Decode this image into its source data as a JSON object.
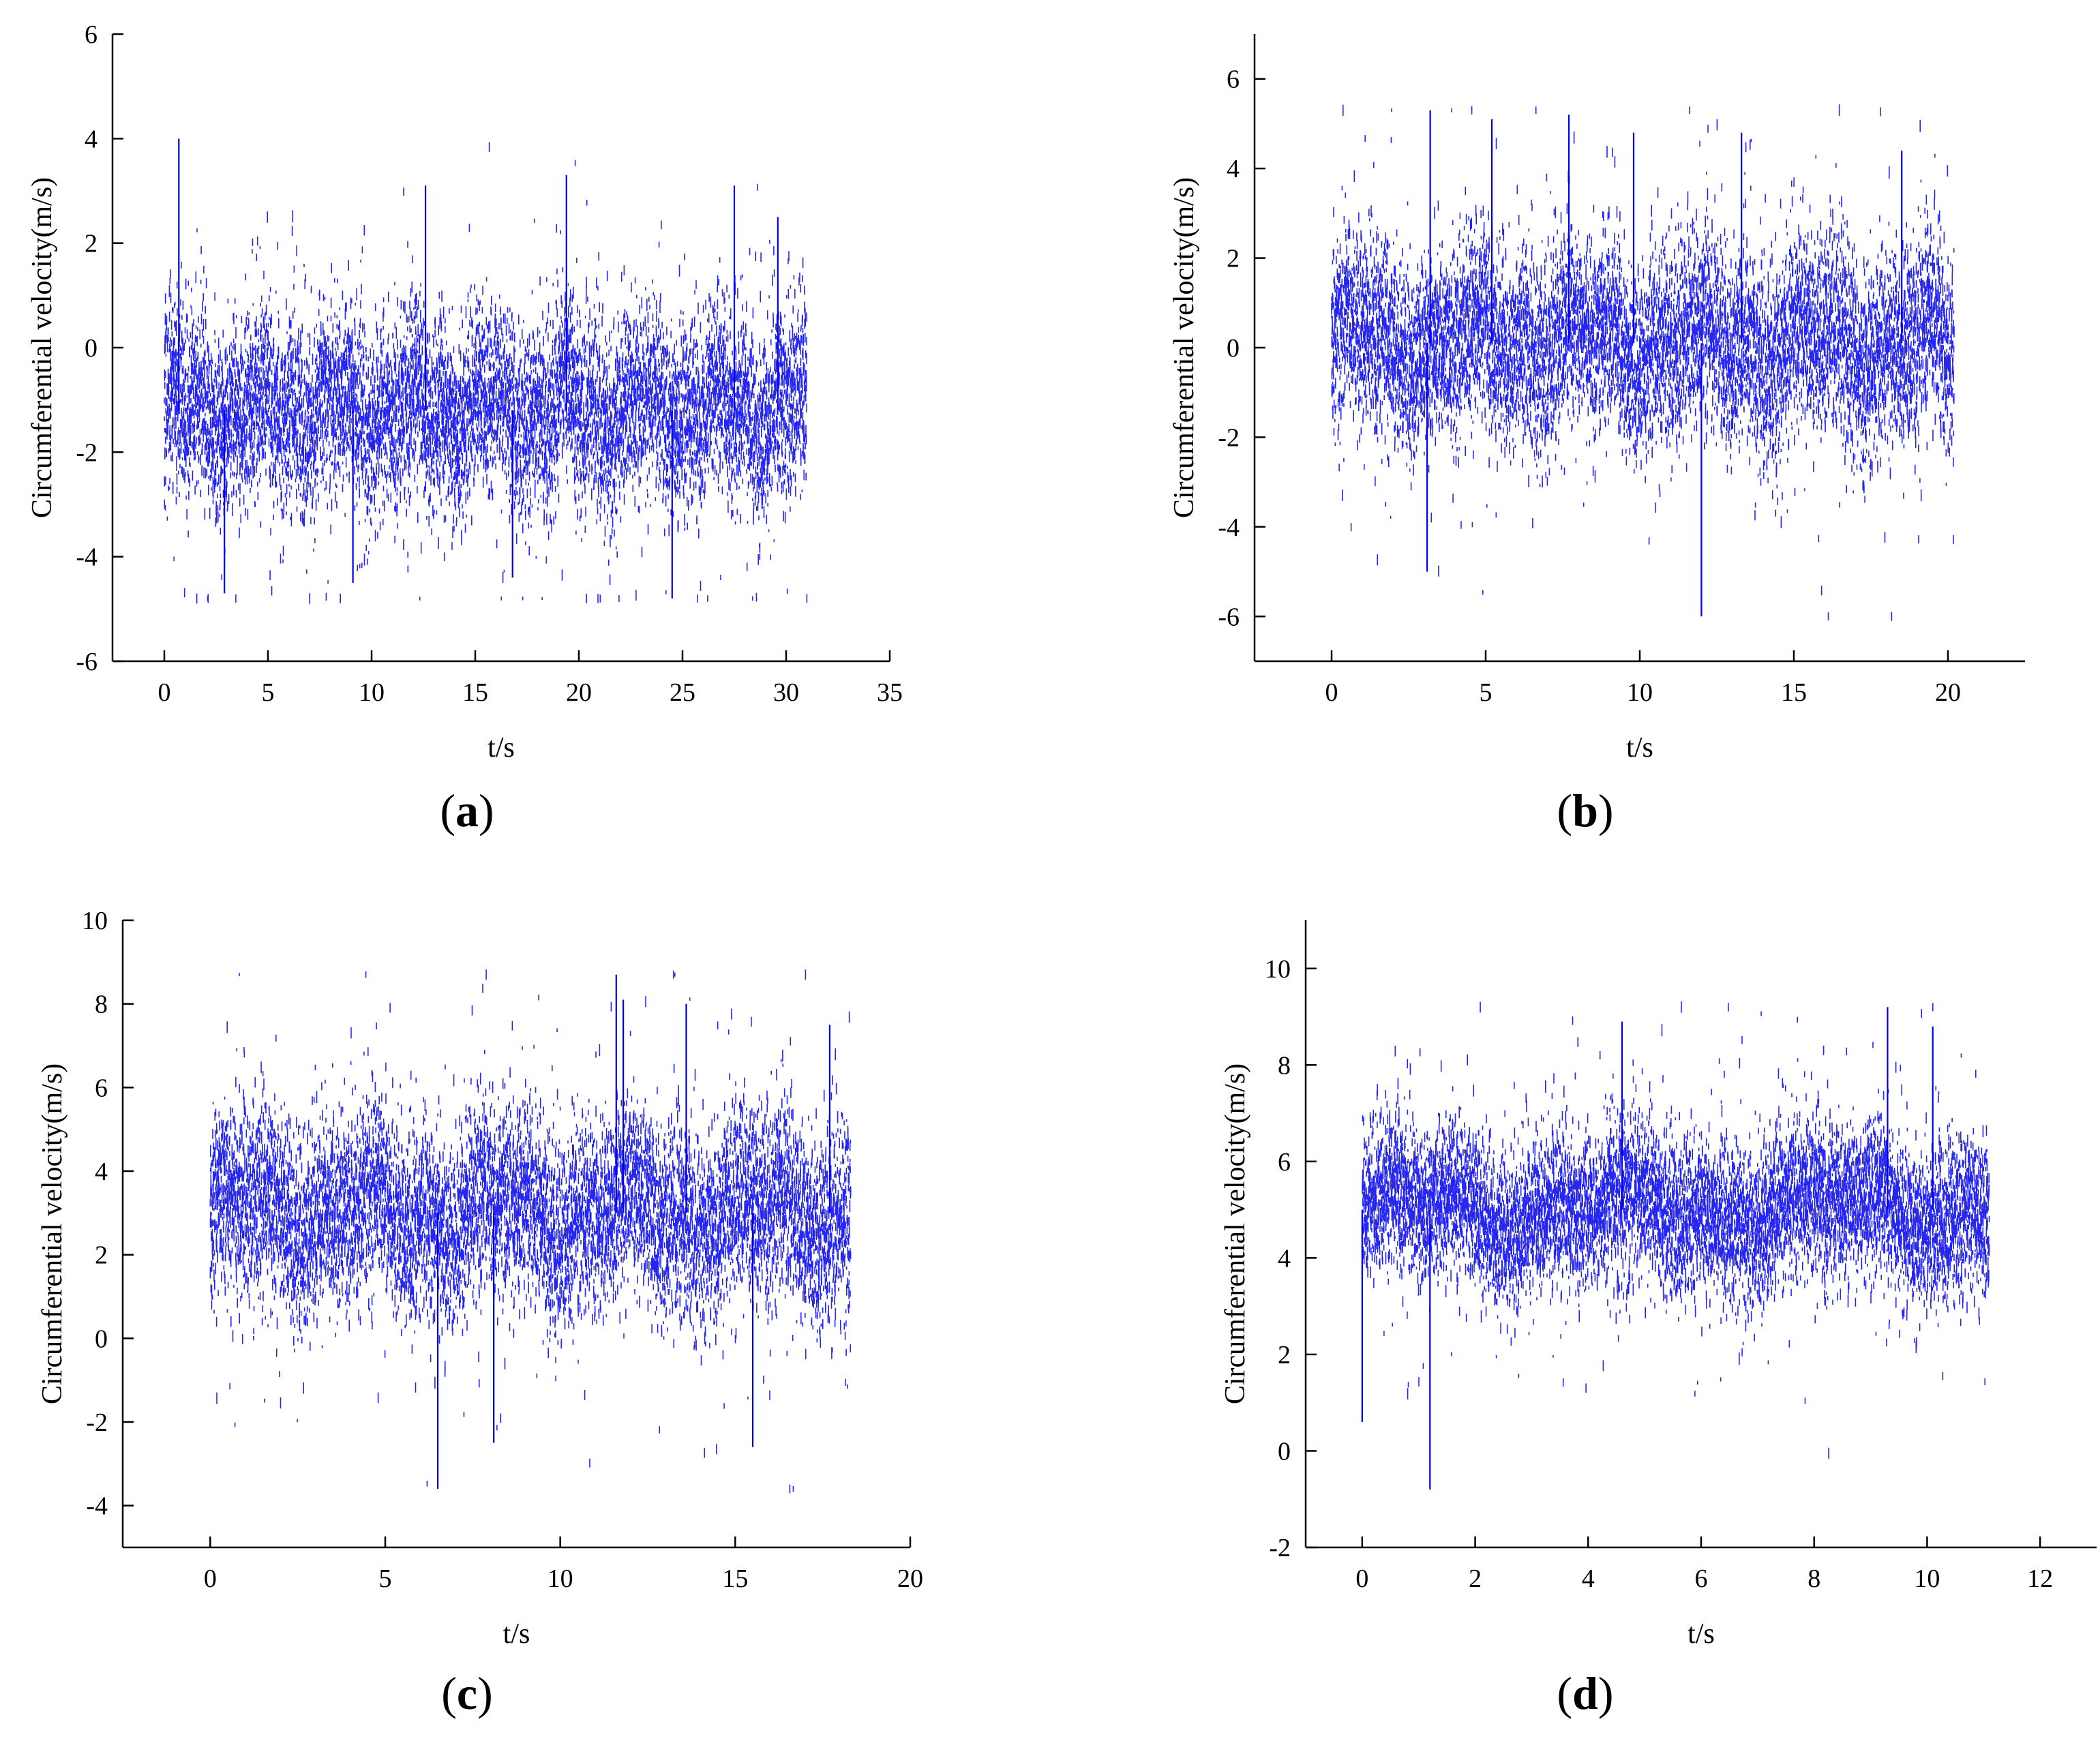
{
  "chart_data": [
    {
      "type": "scatter",
      "panel_label": "a",
      "xlabel": "t/s",
      "ylabel": "Circumferential velocity(m/s)",
      "xlim": [
        -2.5,
        35
      ],
      "ylim": [
        -6,
        6
      ],
      "xticks": [
        0,
        5,
        10,
        15,
        20,
        25,
        30,
        35
      ],
      "yticks": [
        -6,
        -4,
        -2,
        0,
        2,
        4,
        6
      ],
      "grid": false,
      "series": [
        {
          "color": "#0000ee",
          "x_range": [
            0,
            31
          ],
          "mean": -1.2,
          "std": 1.0,
          "min": -4.8,
          "max": 4.0,
          "x": [
            0.7,
            2.9,
            9.1,
            12.6,
            16.8,
            19.4,
            24.5,
            27.5,
            29.6
          ],
          "y": [
            4.0,
            -4.7,
            -4.5,
            3.1,
            -4.4,
            3.3,
            -4.8,
            3.1,
            2.5
          ]
        }
      ]
    },
    {
      "type": "scatter",
      "panel_label": "b",
      "xlabel": "t/s",
      "ylabel": "Circumferential velocity(m/s)",
      "xlim": [
        -2.5,
        22.5
      ],
      "ylim": [
        -7,
        7
      ],
      "xticks": [
        0,
        5,
        10,
        15,
        20
      ],
      "yticks": [
        -6,
        -4,
        -2,
        0,
        2,
        4,
        6
      ],
      "grid": false,
      "series": [
        {
          "color": "#0000ee",
          "x_range": [
            0,
            20.2
          ],
          "mean": 0.1,
          "std": 1.2,
          "min": -6.0,
          "max": 5.3,
          "x": [
            3.1,
            3.2,
            5.2,
            7.7,
            9.8,
            12.0,
            13.3,
            18.5
          ],
          "y": [
            -5.0,
            5.3,
            5.1,
            5.2,
            4.8,
            -6.0,
            4.8,
            4.4
          ]
        }
      ]
    },
    {
      "type": "scatter",
      "panel_label": "c",
      "xlabel": "t/s",
      "ylabel": "Circumferential velocity(m/s)",
      "xlim": [
        -2.5,
        20
      ],
      "ylim": [
        -5,
        10
      ],
      "xticks": [
        0,
        5,
        10,
        15,
        20
      ],
      "yticks": [
        -4,
        -2,
        0,
        2,
        4,
        6,
        8,
        10
      ],
      "grid": false,
      "series": [
        {
          "color": "#0000ee",
          "x_range": [
            0,
            18.3
          ],
          "mean": 3.0,
          "std": 1.3,
          "min": -3.6,
          "max": 8.7,
          "x": [
            6.5,
            8.1,
            11.6,
            11.8,
            13.6,
            15.5,
            17.7
          ],
          "y": [
            -3.6,
            -2.5,
            8.7,
            8.1,
            8.0,
            -2.6,
            7.5
          ]
        }
      ]
    },
    {
      "type": "scatter",
      "panel_label": "d",
      "xlabel": "t/s",
      "ylabel": "Circumferential velocity(m/s)",
      "xlim": [
        -1,
        13
      ],
      "ylim": [
        -2,
        11
      ],
      "xticks": [
        0,
        2,
        4,
        6,
        8,
        10,
        12
      ],
      "yticks": [
        -2,
        0,
        2,
        4,
        6,
        8,
        10
      ],
      "grid": false,
      "series": [
        {
          "color": "#0000ee",
          "x_range": [
            0,
            11.1
          ],
          "mean": 5.0,
          "std": 0.9,
          "min": -0.8,
          "max": 9.2,
          "x": [
            1.2,
            4.6,
            9.3,
            10.1,
            0.0
          ],
          "y": [
            -0.8,
            8.9,
            9.2,
            8.8,
            0.6
          ]
        }
      ]
    }
  ]
}
